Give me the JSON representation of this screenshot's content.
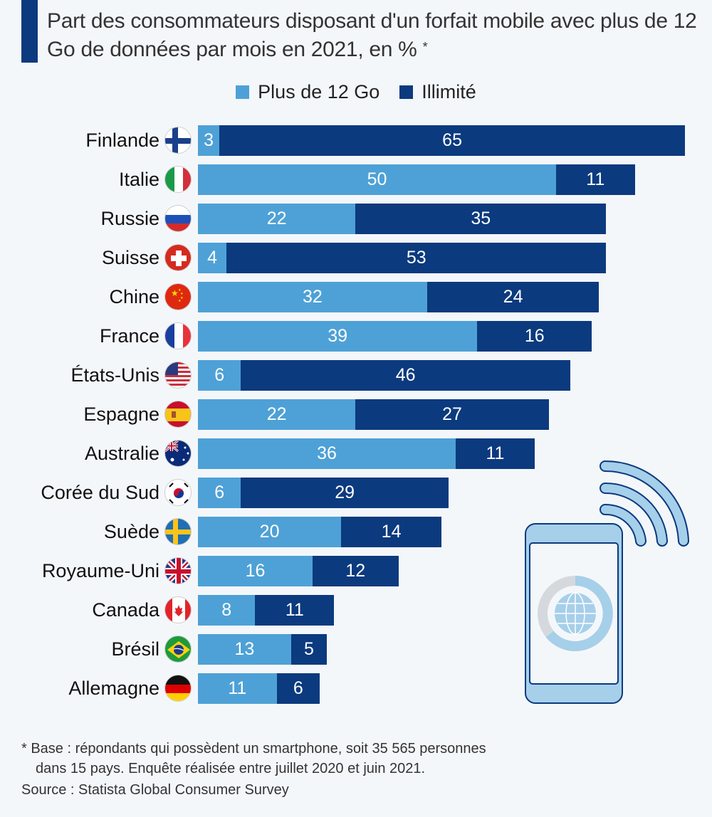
{
  "chart_data": {
    "type": "bar",
    "orientation": "horizontal",
    "stacked": true,
    "title": "Part des consommateurs disposant d'un forfait mobile avec plus de 12 Go de données par mois en 2021, en %",
    "title_marker": "*",
    "xlabel": "",
    "ylabel": "",
    "xlim": [
      0,
      68
    ],
    "grid": false,
    "legend_position": "top-center",
    "categories": [
      "Finlande",
      "Italie",
      "Russie",
      "Suisse",
      "Chine",
      "France",
      "États-Unis",
      "Espagne",
      "Australie",
      "Corée du Sud",
      "Suède",
      "Royaume-Uni",
      "Canada",
      "Brésil",
      "Allemagne"
    ],
    "series": [
      {
        "name": "Plus de 12 Go",
        "color": "#4ea1d6",
        "values": [
          3,
          50,
          22,
          4,
          32,
          39,
          6,
          22,
          36,
          6,
          20,
          16,
          8,
          13,
          11
        ]
      },
      {
        "name": "Illimité",
        "color": "#0b3a7e",
        "values": [
          65,
          11,
          35,
          53,
          24,
          16,
          46,
          27,
          11,
          29,
          14,
          12,
          11,
          5,
          6
        ]
      }
    ],
    "flags": [
      "finland",
      "italy",
      "russia",
      "switzerland",
      "china",
      "france",
      "usa",
      "spain",
      "australia",
      "south-korea",
      "sweden",
      "uk",
      "canada",
      "brazil",
      "germany"
    ]
  },
  "footnote": {
    "line1": "* Base : répondants qui possèdent un smartphone, soit 35 565 personnes",
    "line2": "dans 15 pays. Enquête réalisée entre juillet 2020 et juin 2021.",
    "source": "Source : Statista Global Consumer Survey"
  },
  "illustration": "smartphone-wifi-globe-icon"
}
